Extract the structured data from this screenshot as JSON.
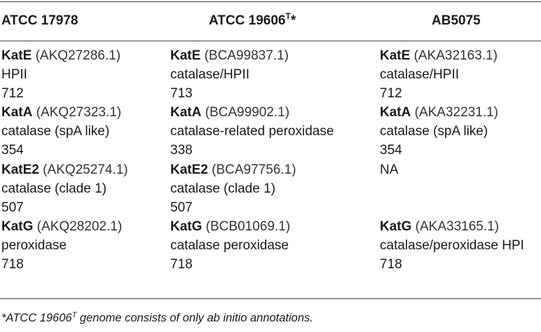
{
  "table": {
    "headers": [
      {
        "text": "ATCC 17978",
        "sup": ""
      },
      {
        "text": "ATCC 19606",
        "sup": "T",
        "suffix": "*"
      },
      {
        "text": "AB5075",
        "sup": ""
      }
    ],
    "columns": [
      {
        "entries": [
          {
            "name": "KatE",
            "accession": " (AKQ27286.1)",
            "desc": "HPII",
            "length": "712"
          },
          {
            "name": "KatA",
            "accession": " (AKQ27323.1)",
            "desc": "catalase (spA like)",
            "length": "354"
          },
          {
            "name": "KatE2",
            "accession": " (AKQ25274.1)",
            "desc": "catalase (clade 1)",
            "length": "507"
          },
          {
            "name": "KatG",
            "accession": " (AKQ28202.1)",
            "desc": "peroxidase",
            "length": "718"
          }
        ]
      },
      {
        "entries": [
          {
            "name": "KatE",
            "accession": " (BCA99837.1)",
            "desc": "catalase/HPII",
            "length": "713"
          },
          {
            "name": "KatA",
            "accession": " (BCA99902.1)",
            "desc": "catalase-related peroxidase",
            "length": "338"
          },
          {
            "name": "KatE2",
            "accession": " (BCA97756.1)",
            "desc": "catalase (clade 1)",
            "length": "507"
          },
          {
            "name": "KatG",
            "accession": " (BCB01069.1)",
            "desc": "catalase peroxidase",
            "length": "718"
          }
        ]
      },
      {
        "entries": [
          {
            "name": "KatE",
            "accession": " (AKA32163.1)",
            "desc": "catalase/HPII",
            "length": "712"
          },
          {
            "name": "KatA",
            "accession": " (AKA32231.1)",
            "desc": "catalase (spA like)",
            "length": "354"
          },
          {
            "na": "NA"
          },
          {
            "name": "KatG",
            "accession": " (AKA33165.1)",
            "desc": "catalase/peroxidase HPI",
            "length": "718"
          }
        ]
      }
    ]
  },
  "footnote": {
    "prefix": "*ATCC 19606",
    "sup": "T",
    "suffix": " genome consists of only ab initio annotations."
  }
}
